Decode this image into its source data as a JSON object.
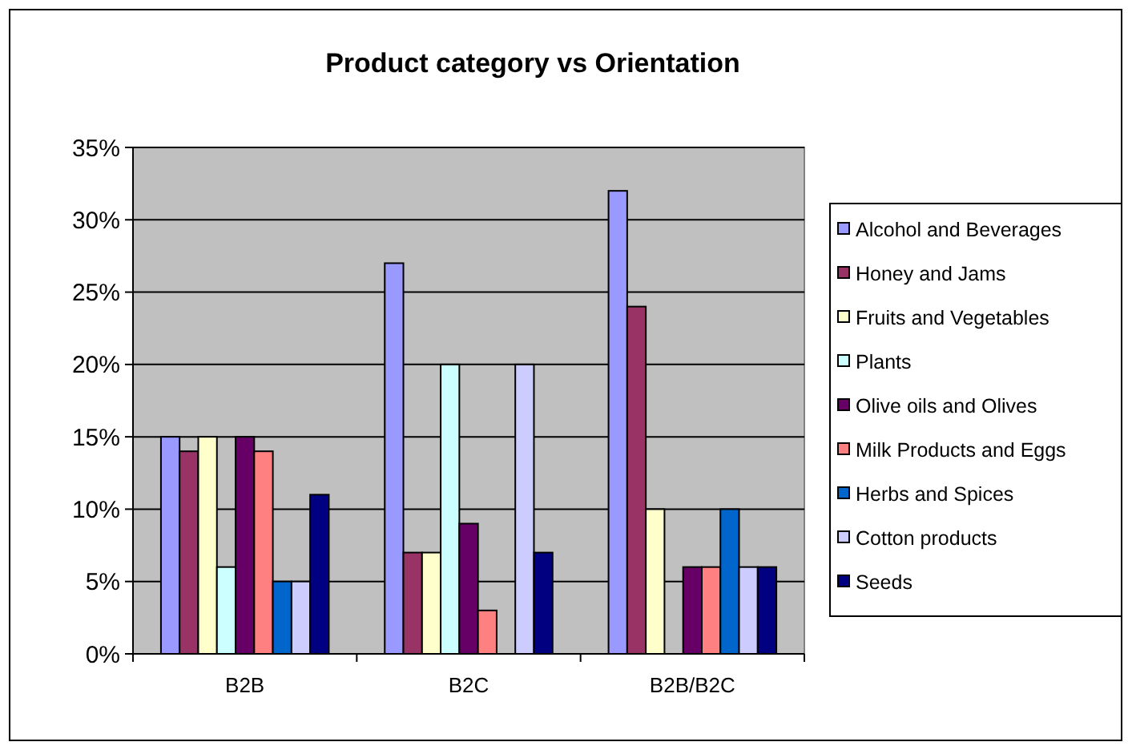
{
  "chart_data": {
    "type": "bar",
    "title": "Product category vs Orientation",
    "categories": [
      "B2B",
      "B2C",
      "B2B/B2C"
    ],
    "series": [
      {
        "name": "Alcohol and Beverages",
        "color": "#9999ff",
        "values": [
          15,
          27,
          32
        ]
      },
      {
        "name": "Honey and Jams",
        "color": "#993366",
        "values": [
          14,
          7,
          24
        ]
      },
      {
        "name": "Fruits and Vegetables",
        "color": "#ffffcc",
        "values": [
          15,
          7,
          10
        ]
      },
      {
        "name": "Plants",
        "color": "#ccffff",
        "values": [
          6,
          20,
          null
        ]
      },
      {
        "name": "Olive oils and Olives",
        "color": "#660066",
        "values": [
          15,
          9,
          6
        ]
      },
      {
        "name": "Milk Products and Eggs",
        "color": "#ff8080",
        "values": [
          14,
          3,
          6
        ]
      },
      {
        "name": "Herbs and Spices",
        "color": "#0066cc",
        "values": [
          5,
          null,
          10
        ]
      },
      {
        "name": "Cotton products",
        "color": "#ccccff",
        "values": [
          5,
          20,
          6
        ]
      },
      {
        "name": "Seeds",
        "color": "#000080",
        "values": [
          11,
          7,
          6
        ]
      }
    ],
    "ylim": [
      0,
      35
    ],
    "yticks": [
      {
        "value": 0,
        "label": "0%"
      },
      {
        "value": 5,
        "label": "5%"
      },
      {
        "value": 10,
        "label": "10%"
      },
      {
        "value": 15,
        "label": "15%"
      },
      {
        "value": 20,
        "label": "20%"
      },
      {
        "value": 25,
        "label": "25%"
      },
      {
        "value": 30,
        "label": "30%"
      },
      {
        "value": 35,
        "label": "35%"
      }
    ],
    "grid": "y",
    "legend": "right"
  }
}
